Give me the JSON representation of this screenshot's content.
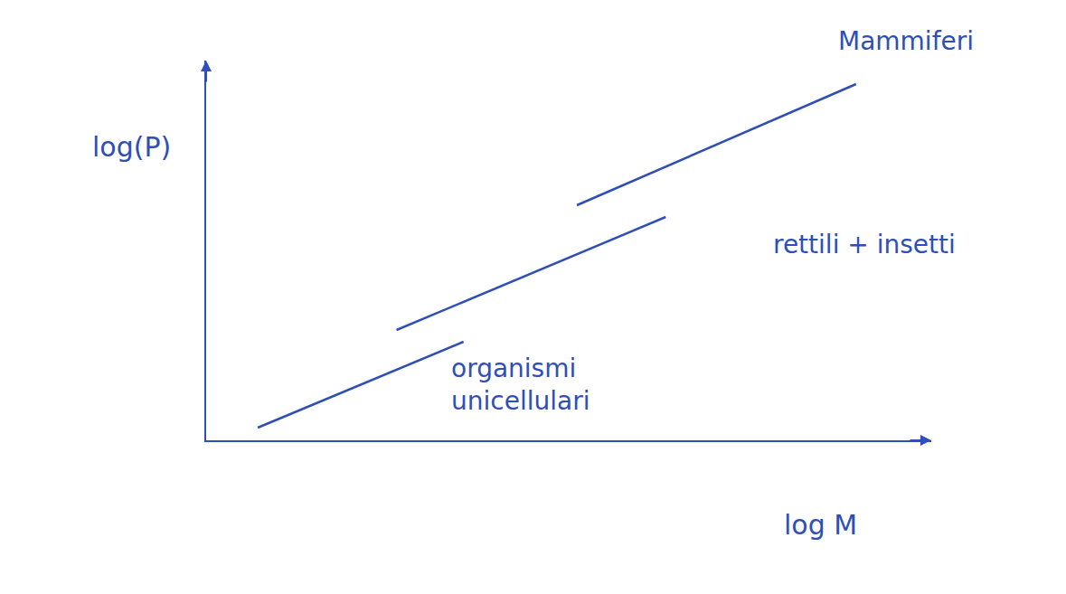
{
  "chart_data": {
    "type": "line",
    "x_label": "log M",
    "y_label": "log(P)",
    "log": true,
    "grid": false,
    "tick_labels": false,
    "xlim": [
      0,
      8
    ],
    "ylim": [
      0,
      4.2
    ],
    "xticks": [],
    "yticks": [],
    "series": [
      {
        "name": "organismi unicellulari",
        "color": "#2f4fb5",
        "x": [
          0.57,
          2.84
        ],
        "values": [
          0.14,
          1.09
        ]
      },
      {
        "name": "rettili + insetti",
        "color": "#2f4fb5",
        "x": [
          2.1,
          5.07
        ],
        "values": [
          1.22,
          2.47
        ]
      },
      {
        "name": "Mammiferi",
        "color": "#2f4fb5",
        "x": [
          4.09,
          7.17
        ],
        "values": [
          2.6,
          3.94
        ]
      }
    ]
  }
}
